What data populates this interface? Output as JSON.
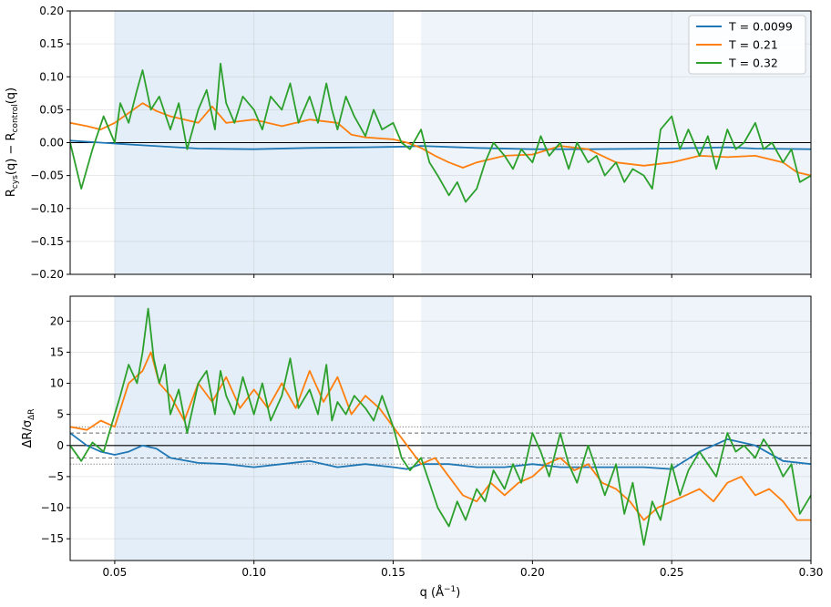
{
  "chart_data": [
    {
      "type": "line",
      "panel": "top",
      "ylabel": "R_cys(q) − R_control(q)",
      "xlabel": "",
      "xlim": [
        0.034,
        0.3
      ],
      "ylim": [
        -0.2,
        0.2
      ],
      "xticks": [
        "0.05",
        "0.10",
        "0.15",
        "0.20",
        "0.25",
        "0.30"
      ],
      "show_xtick_labels": false,
      "yticks": [
        "−0.20",
        "−0.15",
        "−0.10",
        "−0.05",
        "0.00",
        "0.05",
        "0.10",
        "0.15",
        "0.20"
      ],
      "grid": true,
      "legend": "top-right",
      "shaded_regions": [
        {
          "x": [
            0.05,
            0.15
          ],
          "color": "#dbe8f5"
        },
        {
          "x": [
            0.16,
            0.3
          ],
          "color": "#e8f0f8"
        }
      ],
      "hlines": [
        {
          "y": 0,
          "style": "solid"
        }
      ],
      "series": [
        {
          "name": "T = 0.0099",
          "color": "#1f77b4",
          "x": [
            0.034,
            0.045,
            0.06,
            0.08,
            0.1,
            0.12,
            0.14,
            0.155,
            0.16,
            0.18,
            0.2,
            0.22,
            0.25,
            0.27,
            0.28,
            0.3
          ],
          "y": [
            0.003,
            0.0,
            -0.004,
            -0.009,
            -0.01,
            -0.008,
            -0.007,
            -0.006,
            -0.005,
            -0.008,
            -0.01,
            -0.01,
            -0.009,
            -0.007,
            -0.009,
            -0.01
          ]
        },
        {
          "name": "T = 0.21",
          "color": "#ff7f0e",
          "x": [
            0.034,
            0.04,
            0.045,
            0.05,
            0.055,
            0.06,
            0.065,
            0.07,
            0.08,
            0.085,
            0.09,
            0.1,
            0.11,
            0.12,
            0.13,
            0.135,
            0.14,
            0.15,
            0.155,
            0.16,
            0.165,
            0.17,
            0.175,
            0.18,
            0.19,
            0.2,
            0.21,
            0.22,
            0.23,
            0.24,
            0.25,
            0.26,
            0.27,
            0.28,
            0.29,
            0.295,
            0.3
          ],
          "y": [
            0.03,
            0.025,
            0.02,
            0.03,
            0.045,
            0.06,
            0.048,
            0.04,
            0.03,
            0.055,
            0.03,
            0.035,
            0.025,
            0.035,
            0.03,
            0.012,
            0.008,
            0.005,
            0.0,
            -0.008,
            -0.02,
            -0.03,
            -0.038,
            -0.03,
            -0.02,
            -0.018,
            -0.005,
            -0.01,
            -0.03,
            -0.035,
            -0.03,
            -0.02,
            -0.022,
            -0.02,
            -0.03,
            -0.045,
            -0.05
          ]
        },
        {
          "name": "T = 0.32",
          "color": "#2ca02c",
          "x": [
            0.034,
            0.038,
            0.042,
            0.046,
            0.05,
            0.052,
            0.055,
            0.058,
            0.06,
            0.063,
            0.066,
            0.07,
            0.073,
            0.076,
            0.08,
            0.083,
            0.086,
            0.088,
            0.09,
            0.093,
            0.096,
            0.1,
            0.103,
            0.106,
            0.11,
            0.113,
            0.116,
            0.12,
            0.123,
            0.126,
            0.128,
            0.13,
            0.133,
            0.136,
            0.14,
            0.143,
            0.146,
            0.15,
            0.153,
            0.156,
            0.16,
            0.163,
            0.166,
            0.17,
            0.173,
            0.176,
            0.18,
            0.183,
            0.186,
            0.19,
            0.193,
            0.196,
            0.2,
            0.203,
            0.206,
            0.21,
            0.213,
            0.216,
            0.22,
            0.223,
            0.226,
            0.23,
            0.233,
            0.236,
            0.24,
            0.243,
            0.246,
            0.25,
            0.253,
            0.256,
            0.26,
            0.263,
            0.266,
            0.27,
            0.273,
            0.276,
            0.28,
            0.283,
            0.286,
            0.29,
            0.293,
            0.296,
            0.3
          ],
          "y": [
            0.0,
            -0.07,
            -0.01,
            0.04,
            0.0,
            0.06,
            0.03,
            0.08,
            0.11,
            0.05,
            0.07,
            0.02,
            0.06,
            -0.01,
            0.05,
            0.08,
            0.02,
            0.12,
            0.06,
            0.03,
            0.07,
            0.05,
            0.02,
            0.07,
            0.05,
            0.09,
            0.03,
            0.07,
            0.03,
            0.09,
            0.05,
            0.02,
            0.07,
            0.04,
            0.01,
            0.05,
            0.02,
            0.03,
            0.0,
            -0.01,
            0.02,
            -0.03,
            -0.05,
            -0.08,
            -0.06,
            -0.09,
            -0.07,
            -0.03,
            0.0,
            -0.02,
            -0.04,
            -0.01,
            -0.03,
            0.01,
            -0.02,
            0.0,
            -0.04,
            0.0,
            -0.03,
            -0.02,
            -0.05,
            -0.03,
            -0.06,
            -0.04,
            -0.05,
            -0.07,
            0.02,
            0.04,
            -0.01,
            0.02,
            -0.02,
            0.01,
            -0.04,
            0.02,
            -0.01,
            0.0,
            0.03,
            -0.01,
            0.0,
            -0.03,
            -0.01,
            -0.06,
            -0.05
          ]
        }
      ]
    },
    {
      "type": "line",
      "panel": "bottom",
      "ylabel": "ΔR/σ_ΔR",
      "xlabel": "q (Å⁻¹)",
      "xlim": [
        0.034,
        0.3
      ],
      "ylim": [
        -18.5,
        24
      ],
      "xticks": [
        "0.05",
        "0.10",
        "0.15",
        "0.20",
        "0.25",
        "0.30"
      ],
      "yticks": [
        "−15",
        "−10",
        "−5",
        "0",
        "5",
        "10",
        "15",
        "20"
      ],
      "grid": true,
      "shaded_regions": [
        {
          "x": [
            0.05,
            0.15
          ],
          "color": "#dbe8f5"
        },
        {
          "x": [
            0.16,
            0.3
          ],
          "color": "#e8f0f8"
        }
      ],
      "hlines": [
        {
          "y": 0,
          "style": "solid"
        },
        {
          "y": 2,
          "style": "dashed"
        },
        {
          "y": -2,
          "style": "dashed"
        },
        {
          "y": 3,
          "style": "dotted"
        },
        {
          "y": -3,
          "style": "dotted"
        }
      ],
      "series": [
        {
          "name": "T = 0.0099",
          "color": "#1f77b4",
          "x": [
            0.034,
            0.04,
            0.045,
            0.05,
            0.055,
            0.06,
            0.065,
            0.07,
            0.08,
            0.09,
            0.1,
            0.11,
            0.12,
            0.13,
            0.14,
            0.15,
            0.155,
            0.16,
            0.17,
            0.18,
            0.19,
            0.2,
            0.21,
            0.22,
            0.23,
            0.24,
            0.25,
            0.26,
            0.27,
            0.28,
            0.29,
            0.3
          ],
          "y": [
            2.0,
            0.0,
            -1.0,
            -1.5,
            -1.0,
            0.0,
            -0.5,
            -2.0,
            -2.8,
            -3.0,
            -3.5,
            -3.0,
            -2.5,
            -3.5,
            -3.0,
            -3.5,
            -3.8,
            -3.0,
            -3.0,
            -3.5,
            -3.5,
            -3.0,
            -3.5,
            -3.5,
            -3.5,
            -3.5,
            -3.8,
            -1.0,
            1.0,
            0.0,
            -2.5,
            -3.0
          ]
        },
        {
          "name": "T = 0.21",
          "color": "#ff7f0e",
          "x": [
            0.034,
            0.04,
            0.045,
            0.05,
            0.055,
            0.06,
            0.063,
            0.066,
            0.07,
            0.075,
            0.08,
            0.085,
            0.09,
            0.095,
            0.1,
            0.105,
            0.11,
            0.115,
            0.12,
            0.125,
            0.13,
            0.135,
            0.14,
            0.145,
            0.15,
            0.155,
            0.16,
            0.165,
            0.17,
            0.175,
            0.18,
            0.185,
            0.19,
            0.195,
            0.2,
            0.205,
            0.21,
            0.215,
            0.22,
            0.225,
            0.23,
            0.235,
            0.24,
            0.245,
            0.25,
            0.255,
            0.26,
            0.265,
            0.27,
            0.275,
            0.28,
            0.285,
            0.29,
            0.295,
            0.3
          ],
          "y": [
            3.0,
            2.5,
            4.0,
            3.0,
            10.0,
            12.0,
            15.0,
            10.0,
            8.0,
            4.0,
            10.0,
            7.0,
            11.0,
            6.0,
            9.0,
            6.0,
            10.0,
            6.0,
            12.0,
            7.0,
            11.0,
            5.0,
            8.0,
            6.0,
            3.0,
            0.0,
            -3.0,
            -2.0,
            -5.0,
            -8.0,
            -9.0,
            -6.0,
            -8.0,
            -6.0,
            -5.0,
            -3.0,
            -2.0,
            -4.0,
            -3.0,
            -6.0,
            -7.0,
            -9.0,
            -12.0,
            -10.0,
            -9.0,
            -8.0,
            -7.0,
            -9.0,
            -6.0,
            -5.0,
            -8.0,
            -7.0,
            -9.0,
            -12.0,
            -12.0
          ]
        },
        {
          "name": "T = 0.32",
          "color": "#2ca02c",
          "x": [
            0.034,
            0.038,
            0.042,
            0.046,
            0.05,
            0.052,
            0.055,
            0.058,
            0.06,
            0.062,
            0.064,
            0.066,
            0.068,
            0.07,
            0.073,
            0.076,
            0.08,
            0.083,
            0.086,
            0.088,
            0.09,
            0.093,
            0.096,
            0.1,
            0.103,
            0.106,
            0.11,
            0.113,
            0.116,
            0.12,
            0.123,
            0.126,
            0.128,
            0.13,
            0.133,
            0.136,
            0.14,
            0.143,
            0.146,
            0.15,
            0.153,
            0.156,
            0.16,
            0.163,
            0.166,
            0.17,
            0.173,
            0.176,
            0.18,
            0.183,
            0.186,
            0.19,
            0.193,
            0.196,
            0.2,
            0.203,
            0.206,
            0.21,
            0.213,
            0.216,
            0.22,
            0.223,
            0.226,
            0.23,
            0.233,
            0.236,
            0.24,
            0.243,
            0.246,
            0.25,
            0.253,
            0.256,
            0.26,
            0.263,
            0.266,
            0.27,
            0.273,
            0.276,
            0.28,
            0.283,
            0.286,
            0.29,
            0.293,
            0.296,
            0.3
          ],
          "y": [
            0.0,
            -2.5,
            0.5,
            -1.0,
            5.0,
            8.0,
            13.0,
            10.0,
            15.0,
            22.0,
            14.0,
            10.0,
            13.0,
            5.0,
            9.0,
            2.0,
            10.0,
            12.0,
            5.0,
            12.0,
            8.0,
            5.0,
            11.0,
            5.0,
            10.0,
            4.0,
            8.0,
            14.0,
            6.0,
            9.0,
            5.0,
            13.0,
            4.0,
            7.0,
            5.0,
            8.0,
            6.0,
            4.0,
            8.0,
            3.0,
            -2.0,
            -4.0,
            -2.0,
            -6.0,
            -10.0,
            -13.0,
            -9.0,
            -12.0,
            -7.0,
            -9.0,
            -4.0,
            -7.0,
            -3.0,
            -6.0,
            2.0,
            -1.0,
            -5.0,
            2.0,
            -3.0,
            -6.0,
            0.0,
            -4.0,
            -8.0,
            -3.0,
            -11.0,
            -6.0,
            -16.0,
            -9.0,
            -12.0,
            -3.0,
            -8.0,
            -4.0,
            -1.0,
            -3.0,
            -5.0,
            2.0,
            -1.0,
            0.0,
            -2.0,
            1.0,
            -1.0,
            -5.0,
            -3.0,
            -11.0,
            -8.0
          ]
        }
      ]
    }
  ]
}
